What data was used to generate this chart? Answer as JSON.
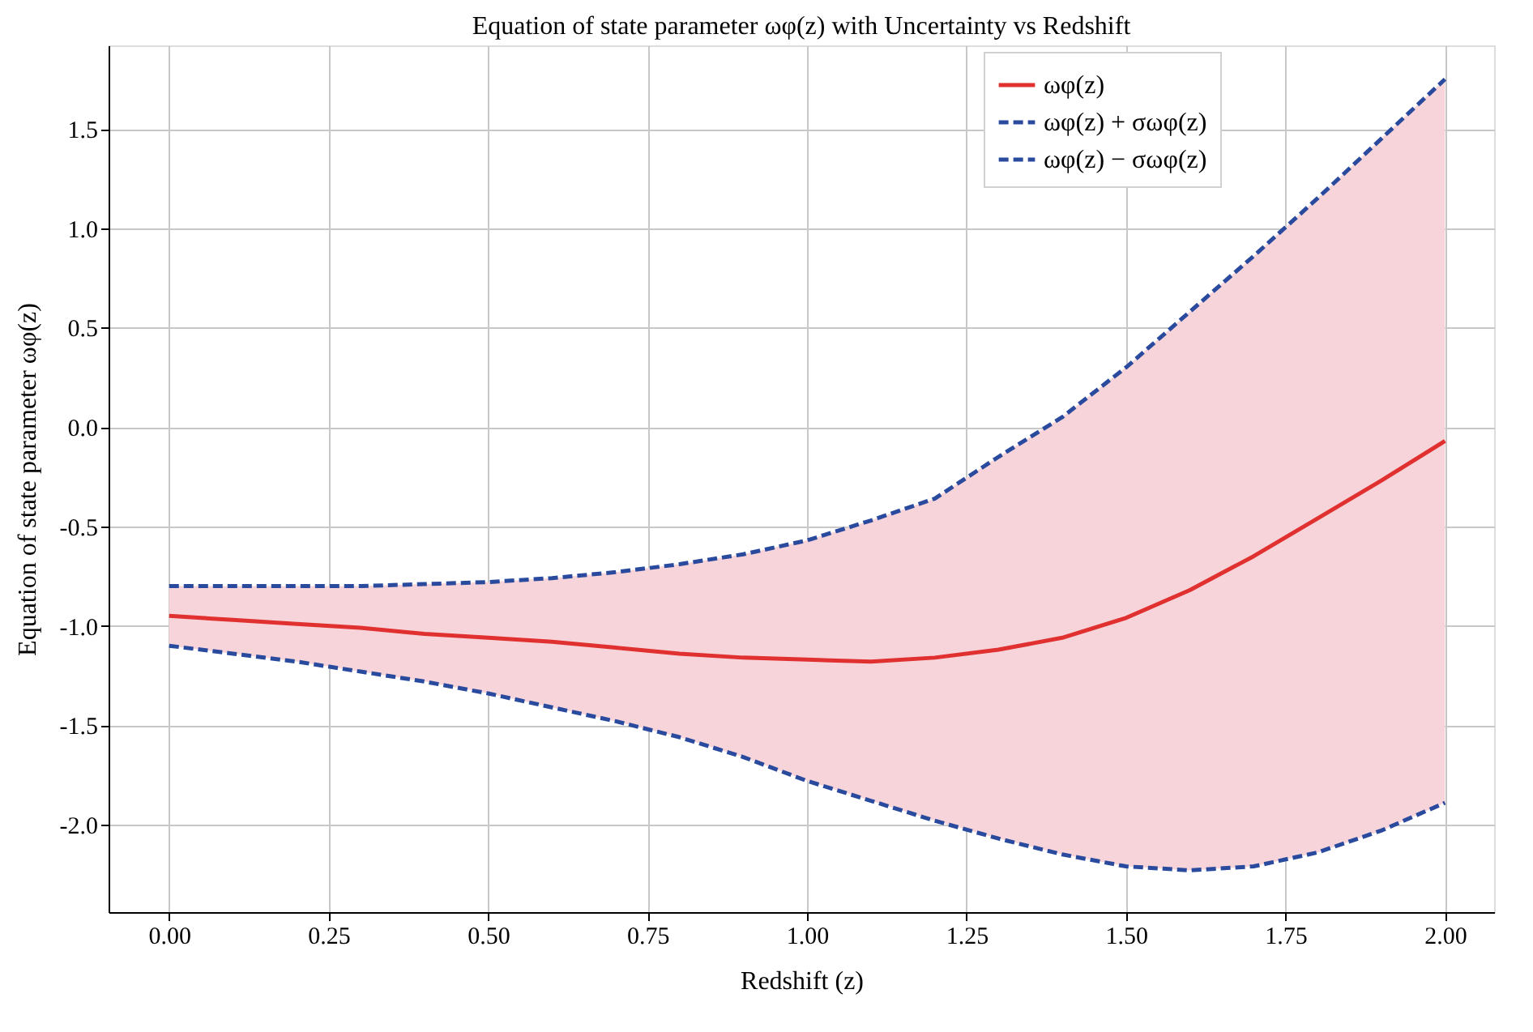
{
  "chart_data": {
    "type": "line",
    "title": "Equation of state parameter ωφ(z) with Uncertainty vs Redshift",
    "xlabel": "Redshift (z)",
    "ylabel": "Equation of state parameter ωφ(z)",
    "x": [
      0,
      0.1,
      0.2,
      0.3,
      0.4,
      0.5,
      0.6,
      0.7,
      0.8,
      0.9,
      1.0,
      1.1,
      1.2,
      1.3,
      1.4,
      1.5,
      1.6,
      1.7,
      1.8,
      1.9,
      2.0
    ],
    "series": [
      {
        "name": "ωφ(z)",
        "color": "#e03030",
        "line_style": "solid",
        "values": [
          -0.95,
          -0.97,
          -0.99,
          -1.01,
          -1.04,
          -1.06,
          -1.08,
          -1.11,
          -1.14,
          -1.16,
          -1.17,
          -1.18,
          -1.16,
          -1.12,
          -1.06,
          -0.96,
          -0.82,
          -0.65,
          -0.46,
          -0.27,
          -0.07
        ],
        "lower": [
          -1.1,
          -1.14,
          -1.18,
          -1.23,
          -1.28,
          -1.34,
          -1.41,
          -1.48,
          -1.56,
          -1.66,
          -1.78,
          -1.88,
          -1.98,
          -2.07,
          -2.15,
          -2.21,
          -2.23,
          -2.21,
          -2.14,
          -2.03,
          -1.89
        ],
        "upper": [
          -0.8,
          -0.8,
          -0.8,
          -0.8,
          -0.79,
          -0.78,
          -0.76,
          -0.73,
          -0.69,
          -0.64,
          -0.57,
          -0.47,
          -0.36,
          -0.15,
          0.05,
          0.3,
          0.58,
          0.86,
          1.15,
          1.45,
          1.75
        ]
      },
      {
        "name": "ωφ(z) + σωφ(z)",
        "color": "#2a4a9e",
        "line_style": "dashed",
        "values": [
          -0.8,
          -0.8,
          -0.8,
          -0.8,
          -0.79,
          -0.78,
          -0.76,
          -0.73,
          -0.69,
          -0.64,
          -0.57,
          -0.47,
          -0.36,
          -0.15,
          0.05,
          0.3,
          0.58,
          0.86,
          1.15,
          1.45,
          1.75
        ]
      },
      {
        "name": "ωφ(z) − σωφ(z)",
        "color": "#2a4a9e",
        "line_style": "dashed",
        "values": [
          -1.1,
          -1.14,
          -1.18,
          -1.23,
          -1.28,
          -1.34,
          -1.41,
          -1.48,
          -1.56,
          -1.66,
          -1.78,
          -1.88,
          -1.98,
          -2.07,
          -2.15,
          -2.21,
          -2.23,
          -2.21,
          -2.14,
          -2.03,
          -1.89
        ]
      }
    ],
    "xlim": [
      -0.095,
      2.077
    ],
    "ylim": [
      -2.44,
      1.92
    ],
    "xticks": [
      {
        "value": 0,
        "label": "0.00"
      },
      {
        "value": 0.25,
        "label": "0.25"
      },
      {
        "value": 0.5,
        "label": "0.50"
      },
      {
        "value": 0.75,
        "label": "0.75"
      },
      {
        "value": 1.0,
        "label": "1.00"
      },
      {
        "value": 1.25,
        "label": "1.25"
      },
      {
        "value": 1.5,
        "label": "1.50"
      },
      {
        "value": 1.75,
        "label": "1.75"
      },
      {
        "value": 2.0,
        "label": "2.00"
      }
    ],
    "yticks": [
      {
        "value": -2.0,
        "label": "-2.0"
      },
      {
        "value": -1.5,
        "label": "-1.5"
      },
      {
        "value": -1.0,
        "label": "-1.0"
      },
      {
        "value": -0.5,
        "label": "-0.5"
      },
      {
        "value": 0,
        "label": "0.0"
      },
      {
        "value": 0.5,
        "label": "0.5"
      },
      {
        "value": 1.0,
        "label": "1.0"
      },
      {
        "value": 1.5,
        "label": "1.5"
      }
    ],
    "grid": true,
    "legend": "top right"
  }
}
